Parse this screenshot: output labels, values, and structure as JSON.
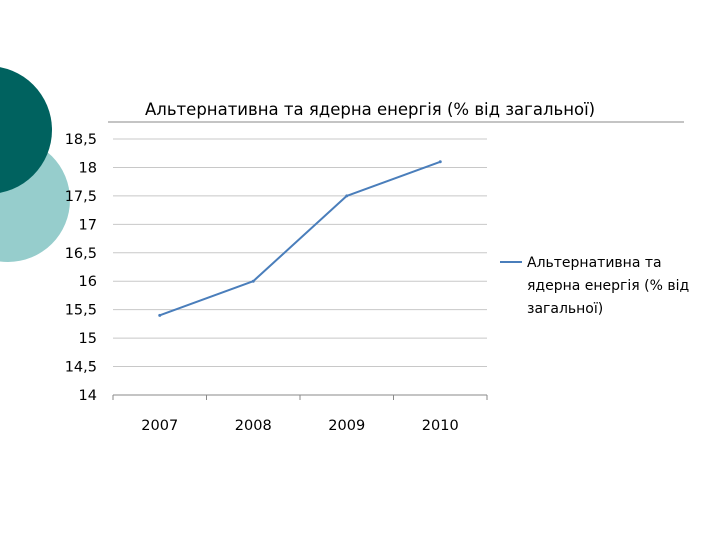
{
  "colors": {
    "deco_dark": "#00625f",
    "deco_light": "#96cdcc",
    "series": "#4a7ebb",
    "grid": "#c8c8c8",
    "axis": "#8a8a8a"
  },
  "chart_data": {
    "type": "line",
    "title": "Альтернативна та ядерна енергія (% від загальної)",
    "categories": [
      "2007",
      "2008",
      "2009",
      "2010"
    ],
    "series": [
      {
        "name": "Альтернативна та ядерна енергія (% від загальної)",
        "legend_lines": [
          "Альтернативна та",
          "ядерна енергія (% від",
          "загальної)"
        ],
        "values": [
          15.4,
          16.0,
          17.5,
          18.1
        ]
      }
    ],
    "ylim": [
      14,
      18.5
    ],
    "ytick_labels": [
      "18,5",
      "18",
      "17,5",
      "17",
      "16,5",
      "16",
      "15,5",
      "15",
      "14,5",
      "14"
    ],
    "grid": true,
    "legend_position": "right"
  }
}
